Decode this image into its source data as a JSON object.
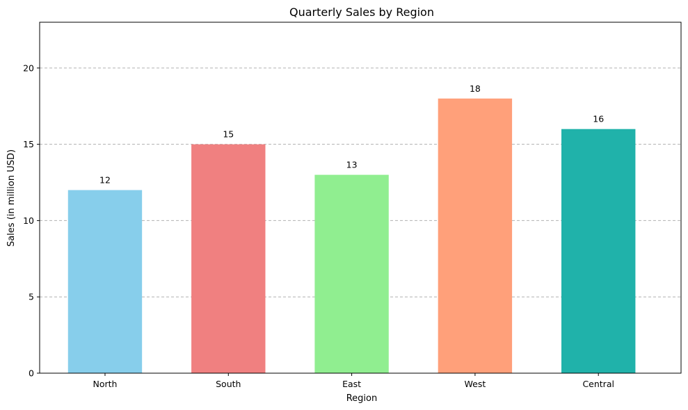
{
  "chart_data": {
    "type": "bar",
    "title": "Quarterly Sales by Region",
    "xlabel": "Region",
    "ylabel": "Sales (in million USD)",
    "categories": [
      "North",
      "South",
      "East",
      "West",
      "Central"
    ],
    "values": [
      12,
      15,
      13,
      18,
      16
    ],
    "colors": [
      "#87ceeb",
      "#f08080",
      "#90ee90",
      "#ffa07a",
      "#20b2aa"
    ],
    "ylim": [
      0,
      23
    ],
    "yticks": [
      0,
      5,
      10,
      15,
      20
    ],
    "grid": "y-dashed",
    "legend": "none"
  }
}
